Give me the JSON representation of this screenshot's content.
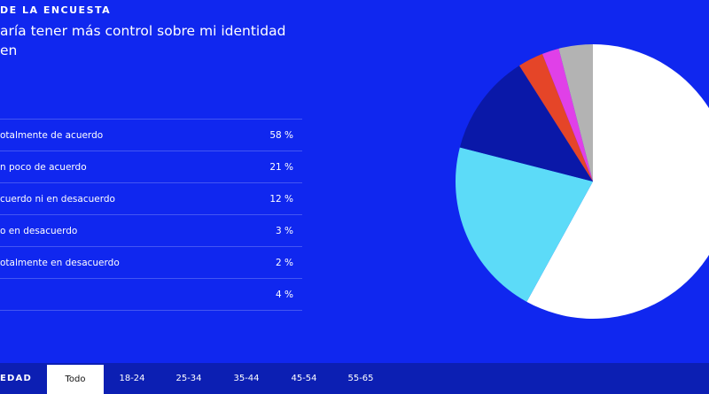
{
  "header": {
    "kicker": "DE LA ENCUESTA",
    "question": "aría tener más control sobre mi identidad en"
  },
  "chart_data": {
    "type": "pie",
    "title": "",
    "categories": [
      "otalmente de acuerdo",
      "n poco de acuerdo",
      "cuerdo ni en desacuerdo",
      "o en desacuerdo",
      "otalmente en desacuerdo",
      ""
    ],
    "values": [
      58,
      21,
      12,
      3,
      2,
      4
    ],
    "value_labels": [
      "58 %",
      "21 %",
      "12 %",
      "3 %",
      "2 %",
      "4 %"
    ],
    "colors": [
      "#ffffff",
      "#5cdbf8",
      "#0a18a8",
      "#e54528",
      "#e040e8",
      "#b3b3b3"
    ]
  },
  "tabs": {
    "label": "EDAD",
    "items": [
      "Todo",
      "18-24",
      "25-34",
      "35-44",
      "45-54",
      "55-65"
    ],
    "active": 0
  }
}
